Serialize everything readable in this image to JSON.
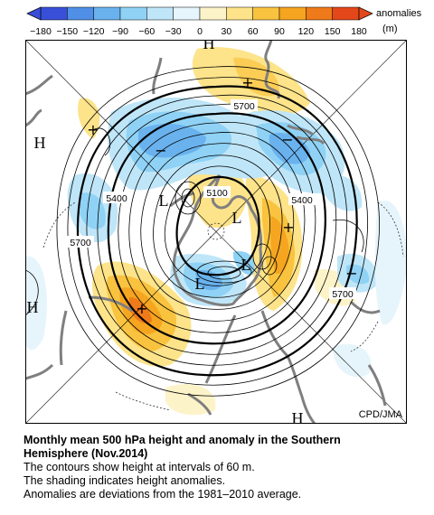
{
  "legend": {
    "unit_label": "anomalies",
    "unit": "(m)",
    "ticks": [
      "−180",
      "−150",
      "−120",
      "−90",
      "−60",
      "−30",
      "0",
      "30",
      "60",
      "90",
      "120",
      "150",
      "180"
    ],
    "colors": [
      "#3a4fd8",
      "#4f8fe6",
      "#69b2ee",
      "#8fd2f5",
      "#bfe6f8",
      "#e6f5fb",
      "#fdf3c9",
      "#fde38a",
      "#f9c33f",
      "#f5a51f",
      "#ef7a1a",
      "#e3471a"
    ]
  },
  "map": {
    "contour_labels": [
      "5700",
      "5400",
      "5100",
      "5400",
      "5700",
      "5700"
    ],
    "markers": {
      "H": [
        "H",
        "H",
        "H",
        "H"
      ],
      "L": [
        "L",
        "L",
        "L",
        "L"
      ],
      "plus": [
        "+",
        "+",
        "+",
        "+"
      ],
      "minus": [
        "−",
        "−",
        "−"
      ]
    },
    "credit": "CPD/JMA"
  },
  "caption": {
    "title_line1": "Monthly mean 500 hPa height and anomaly in the Southern",
    "title_line2": "Hemisphere (Nov.2014)",
    "line1": "The contours show height at intervals of 60 m.",
    "line2": "The shading indicates height anomalies.",
    "line3": "Anomalies are deviations from the 1981–2010 average."
  }
}
